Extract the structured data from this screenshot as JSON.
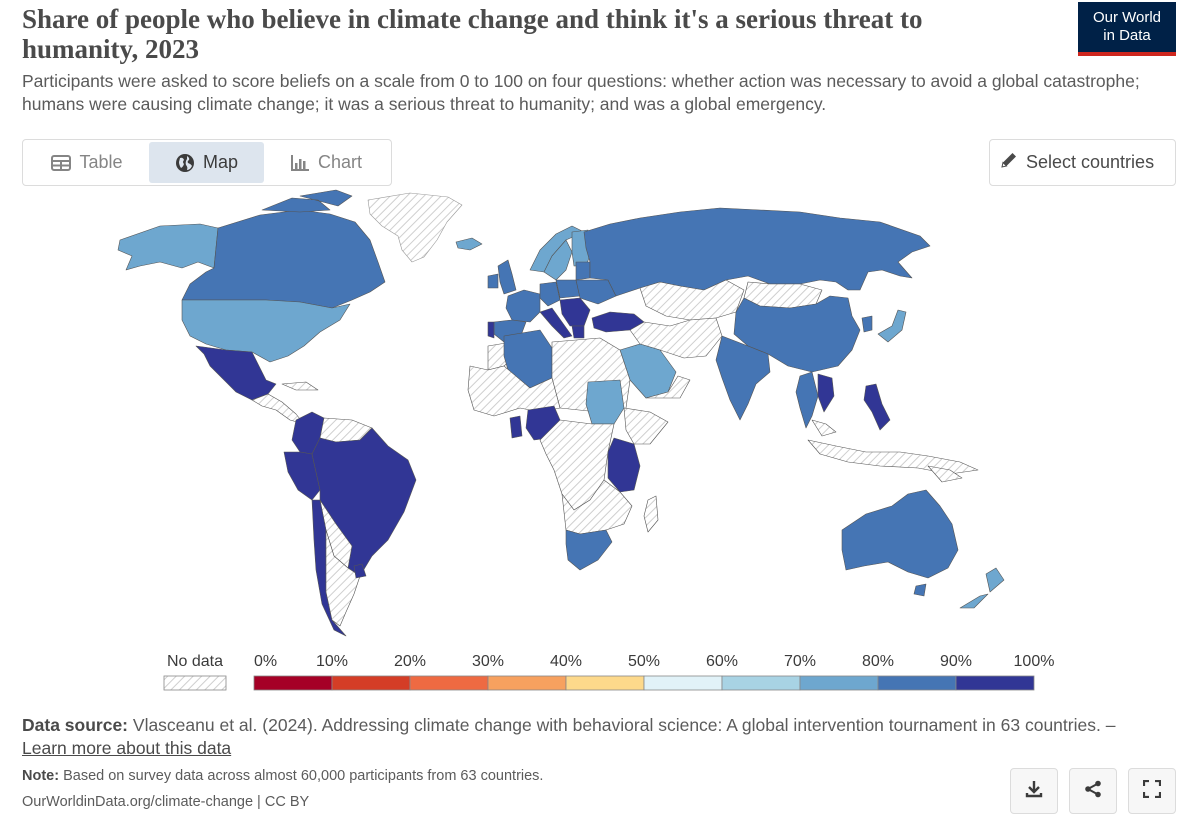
{
  "header": {
    "title": "Share of people who believe in climate change and think it's a serious threat to humanity, 2023",
    "subtitle": "Participants were asked to score beliefs on a scale from 0 to 100 on four questions: whether action was necessary to avoid a global catastrophe; humans were causing climate change; it was a serious threat to humanity; and was a global emergency.",
    "logo_line1": "Our World",
    "logo_line2": "in Data"
  },
  "tabs": [
    {
      "label": "Table",
      "icon": "table-icon",
      "active": false
    },
    {
      "label": "Map",
      "icon": "globe-icon",
      "active": true
    },
    {
      "label": "Chart",
      "icon": "chart-icon",
      "active": false
    }
  ],
  "select_countries": {
    "label": "Select countries",
    "icon": "pencil-icon"
  },
  "legend": {
    "no_data_label": "No data",
    "ticks": [
      "0%",
      "10%",
      "20%",
      "30%",
      "40%",
      "50%",
      "60%",
      "70%",
      "80%",
      "90%",
      "100%"
    ],
    "bins": [
      {
        "range": [
          0,
          10
        ],
        "color": "#a50026"
      },
      {
        "range": [
          10,
          20
        ],
        "color": "#d43d26"
      },
      {
        "range": [
          20,
          30
        ],
        "color": "#ee6a42"
      },
      {
        "range": [
          30,
          40
        ],
        "color": "#f7a15f"
      },
      {
        "range": [
          40,
          50
        ],
        "color": "#fdd98b"
      },
      {
        "range": [
          50,
          60
        ],
        "color": "#e1f2f8"
      },
      {
        "range": [
          60,
          70
        ],
        "color": "#a8d3e4"
      },
      {
        "range": [
          70,
          80
        ],
        "color": "#6ea7cf"
      },
      {
        "range": [
          80,
          90
        ],
        "color": "#4575b4"
      },
      {
        "range": [
          90,
          100
        ],
        "color": "#313695"
      }
    ]
  },
  "colors": {
    "bin_70_80": "#6ea7cf",
    "bin_80_90": "#4575b4",
    "bin_90_100": "#313695",
    "no_data_hatch": "#cfcfcf",
    "border": "#555555"
  },
  "footer": {
    "source_label": "Data source:",
    "source_text": "Vlasceanu et al. (2024). Addressing climate change with behavioral science: A global intervention tournament in 63 countries. –",
    "learn_more": "Learn more about this data",
    "note_label": "Note:",
    "note_text": "Based on survey data across almost 60,000 participants from 63 countries.",
    "credit": "OurWorldinData.org/climate-change | CC BY"
  },
  "actions": [
    {
      "name": "download-button",
      "icon": "download-icon"
    },
    {
      "name": "share-button",
      "icon": "share-icon"
    },
    {
      "name": "fullscreen-button",
      "icon": "fullscreen-icon"
    }
  ]
}
